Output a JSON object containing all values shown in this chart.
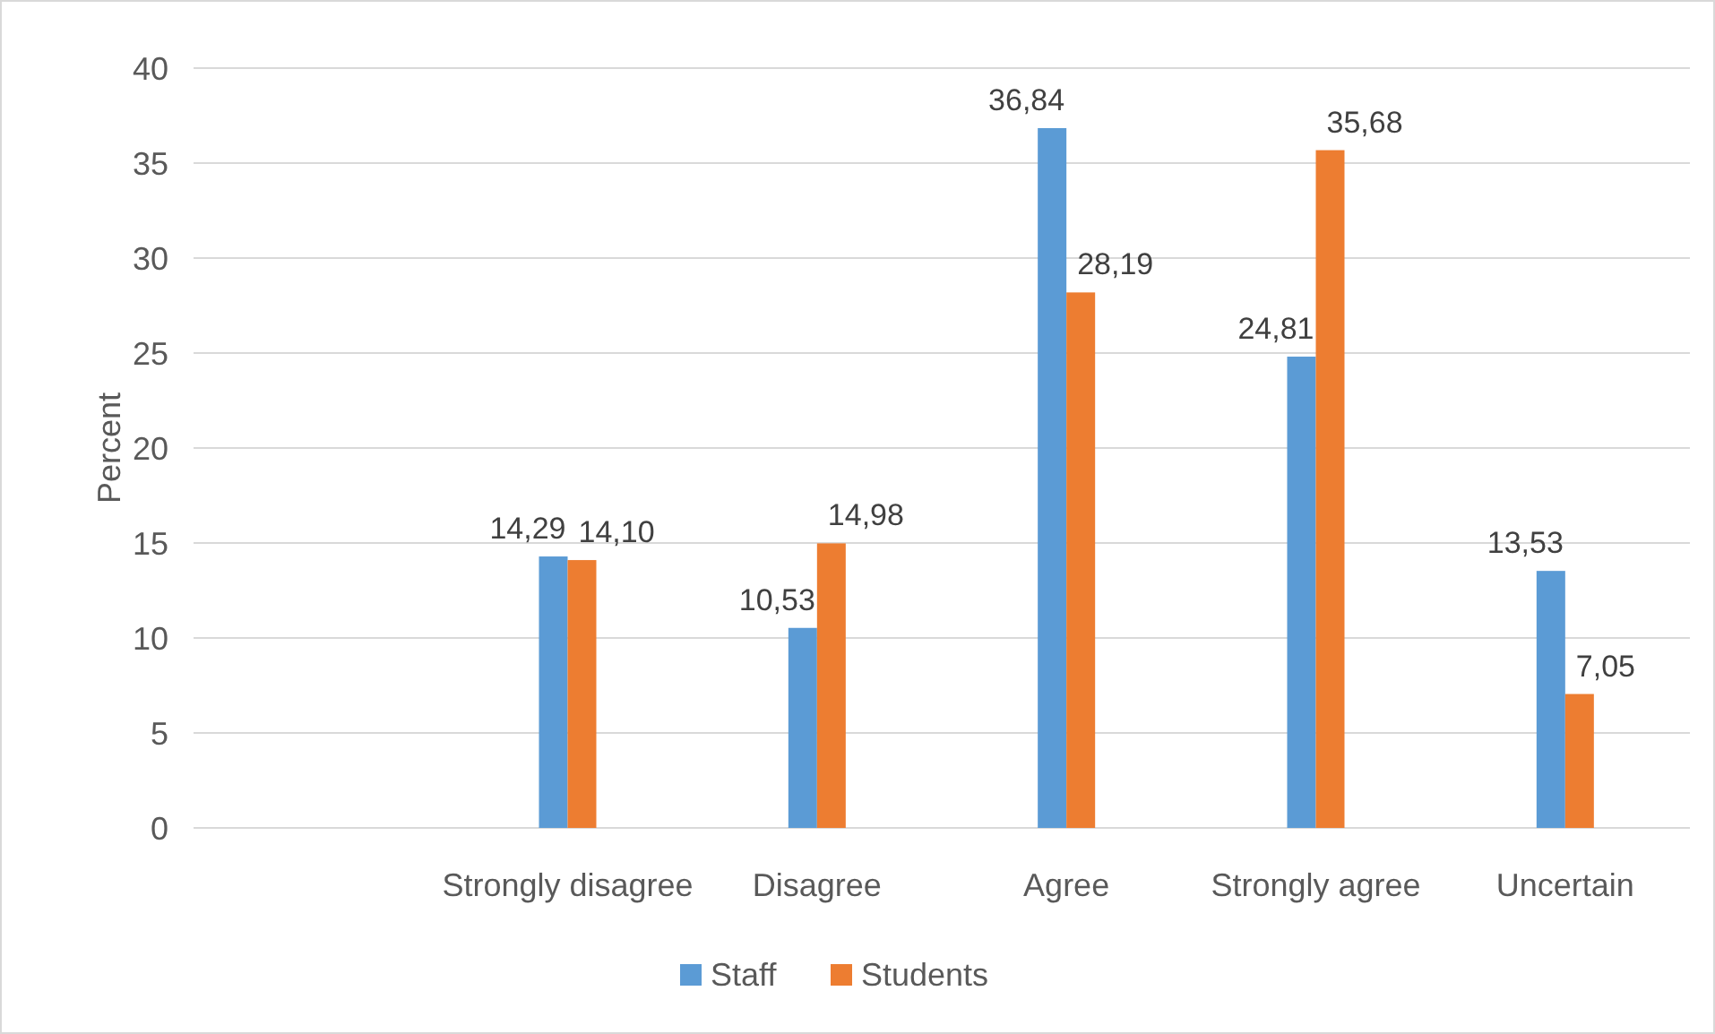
{
  "chart_data": {
    "type": "bar",
    "ylabel": "Percent",
    "categories": [
      null,
      "Strongly disagree",
      "Disagree",
      "Agree",
      "Strongly agree",
      "Uncertain"
    ],
    "series": [
      {
        "name": "Staff",
        "color": "#5b9bd5",
        "values": [
          null,
          14.29,
          10.53,
          36.84,
          24.81,
          13.53
        ],
        "value_labels": [
          null,
          "14,29",
          "10,53",
          "36,84",
          "24,81",
          "13,53"
        ]
      },
      {
        "name": "Students",
        "color": "#ed7d31",
        "values": [
          null,
          14.1,
          14.98,
          28.19,
          35.68,
          7.05
        ],
        "value_labels": [
          null,
          "14,10",
          "14,98",
          "28,19",
          "35,68",
          "7,05"
        ]
      }
    ],
    "ylim": [
      0,
      40
    ],
    "yticks": [
      0,
      5,
      10,
      15,
      20,
      25,
      30,
      35,
      40
    ],
    "grid": "y",
    "legend": "bottom"
  }
}
